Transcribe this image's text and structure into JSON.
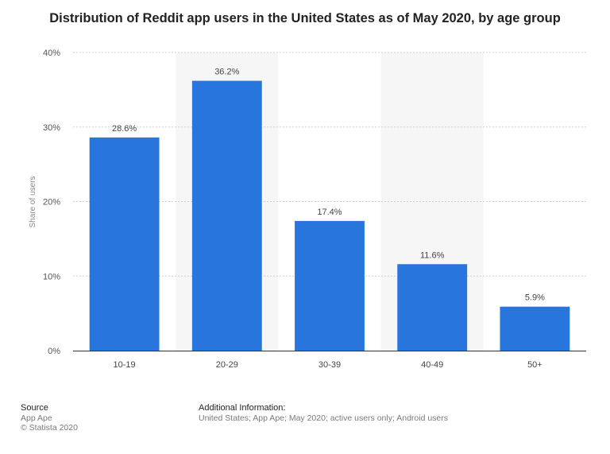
{
  "title": "Distribution of Reddit app users in the United States as of May 2020, by age group",
  "chart_data": {
    "type": "bar",
    "categories": [
      "10-19",
      "20-29",
      "30-39",
      "40-49",
      "50+"
    ],
    "values": [
      28.6,
      36.2,
      17.4,
      11.6,
      5.9
    ],
    "data_labels": [
      "28.6%",
      "36.2%",
      "17.4%",
      "11.6%",
      "5.9%"
    ],
    "ylabel": "Share of users",
    "xlabel": "",
    "ylim": [
      0,
      40
    ],
    "yticks": [
      0,
      10,
      20,
      30,
      40
    ],
    "ytick_labels": [
      "0%",
      "10%",
      "20%",
      "30%",
      "40%"
    ],
    "grid": true,
    "bar_color": "#2876dd",
    "band_color": "#f6f6f6"
  },
  "footer": {
    "source_heading": "Source",
    "source_lines": [
      "App Ape",
      "© Statista 2020"
    ],
    "info_heading": "Additional Information:",
    "info_text": "United States; App Ape; May 2020; active users only; Android users"
  }
}
